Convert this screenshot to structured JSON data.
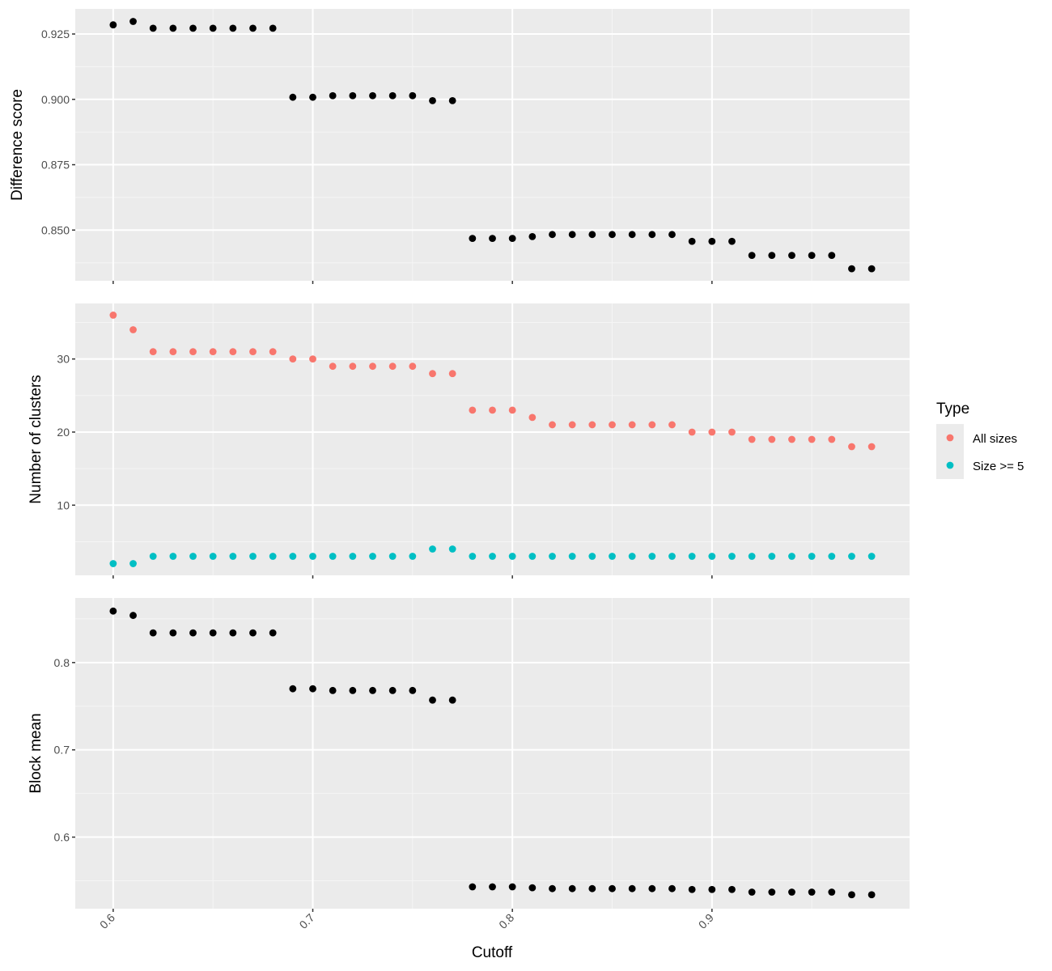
{
  "chart_data": {
    "type": "scatter",
    "x_label": "Cutoff",
    "x_ticks": [
      0.6,
      0.7,
      0.8,
      0.9
    ],
    "x_tick_labels": [
      "0.6",
      "0.7",
      "0.8",
      "0.9"
    ],
    "xlim": [
      0.581,
      0.999
    ],
    "grid": true,
    "background_color": "#ebebeb",
    "legend": {
      "title": "Type",
      "placement": "right",
      "entries": [
        {
          "label": "All sizes",
          "color": "#f8766d"
        },
        {
          "label": "Size >= 5",
          "color": "#00bfc4"
        }
      ]
    },
    "x": [
      0.6,
      0.61,
      0.62,
      0.63,
      0.64,
      0.65,
      0.66,
      0.67,
      0.68,
      0.69,
      0.7,
      0.71,
      0.72,
      0.73,
      0.74,
      0.75,
      0.76,
      0.77,
      0.78,
      0.79,
      0.8,
      0.81,
      0.82,
      0.83,
      0.84,
      0.85,
      0.86,
      0.87,
      0.88,
      0.89,
      0.9,
      0.91,
      0.92,
      0.93,
      0.94,
      0.95,
      0.96,
      0.97,
      0.98
    ],
    "panels": [
      {
        "y_label": "Difference score",
        "ylim": [
          0.8306,
          0.9346
        ],
        "y_ticks": [
          0.85,
          0.875,
          0.9,
          0.925
        ],
        "y_tick_labels": [
          "0.850",
          "0.875",
          "0.900",
          "0.925"
        ],
        "series": [
          {
            "color": "#000000",
            "values": [
              0.9285,
              0.9298,
              0.9272,
              0.9272,
              0.9272,
              0.9272,
              0.9272,
              0.9272,
              0.9272,
              0.9008,
              0.9008,
              0.9014,
              0.9014,
              0.9014,
              0.9014,
              0.9014,
              0.8995,
              0.8995,
              0.8468,
              0.8468,
              0.8468,
              0.8475,
              0.8483,
              0.8483,
              0.8483,
              0.8483,
              0.8483,
              0.8483,
              0.8483,
              0.8457,
              0.8457,
              0.8457,
              0.8403,
              0.8403,
              0.8403,
              0.8403,
              0.8403,
              0.8352,
              0.8352
            ]
          }
        ]
      },
      {
        "y_label": "Number of clusters",
        "ylim": [
          0.4,
          37.6
        ],
        "y_ticks": [
          10,
          20,
          30
        ],
        "y_tick_labels": [
          "10",
          "20",
          "30"
        ],
        "series": [
          {
            "name": "All sizes",
            "color": "#f8766d",
            "values": [
              36,
              34,
              31,
              31,
              31,
              31,
              31,
              31,
              31,
              30,
              30,
              29,
              29,
              29,
              29,
              29,
              28,
              28,
              23,
              23,
              23,
              22,
              21,
              21,
              21,
              21,
              21,
              21,
              21,
              20,
              20,
              20,
              19,
              19,
              19,
              19,
              19,
              18,
              18
            ]
          },
          {
            "name": "Size >= 5",
            "color": "#00bfc4",
            "values": [
              2,
              2,
              3,
              3,
              3,
              3,
              3,
              3,
              3,
              3,
              3,
              3,
              3,
              3,
              3,
              3,
              4,
              4,
              3,
              3,
              3,
              3,
              3,
              3,
              3,
              3,
              3,
              3,
              3,
              3,
              3,
              3,
              3,
              3,
              3,
              3,
              3,
              3,
              3
            ]
          }
        ]
      },
      {
        "y_label": "Block mean",
        "ylim": [
          0.518,
          0.874
        ],
        "y_ticks": [
          0.6,
          0.7,
          0.8
        ],
        "y_tick_labels": [
          "0.6",
          "0.7",
          "0.8"
        ],
        "series": [
          {
            "color": "#000000",
            "values": [
              0.859,
              0.854,
              0.834,
              0.834,
              0.834,
              0.834,
              0.834,
              0.834,
              0.834,
              0.77,
              0.77,
              0.768,
              0.768,
              0.768,
              0.768,
              0.768,
              0.757,
              0.757,
              0.543,
              0.543,
              0.543,
              0.542,
              0.541,
              0.541,
              0.541,
              0.541,
              0.541,
              0.541,
              0.541,
              0.54,
              0.54,
              0.54,
              0.537,
              0.537,
              0.537,
              0.537,
              0.537,
              0.534,
              0.534
            ]
          }
        ]
      }
    ]
  }
}
